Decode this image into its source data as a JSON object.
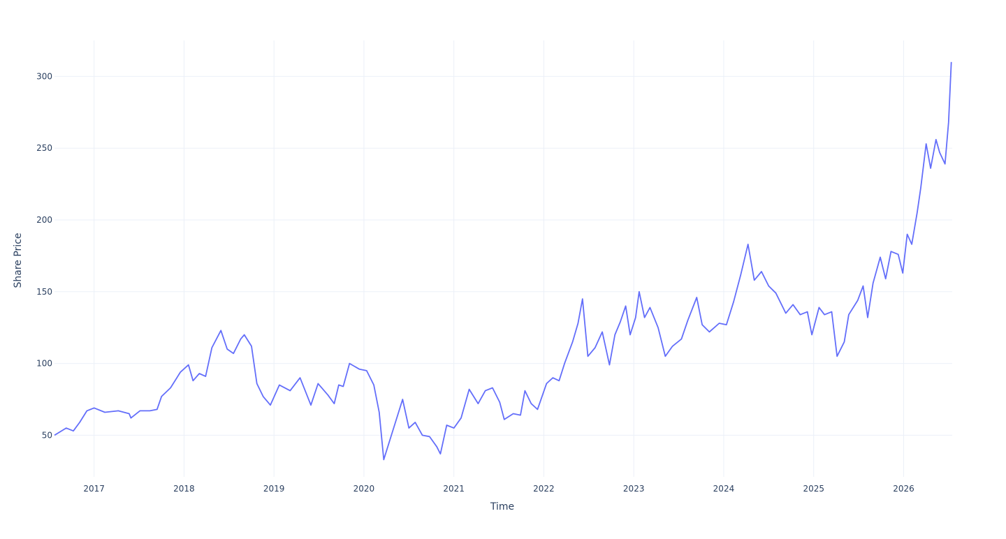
{
  "chart_data": {
    "type": "line",
    "x_label": "Time",
    "y_label": "Share Price",
    "xlim": [
      2016.56,
      2026.54
    ],
    "ylim": [
      21,
      325
    ],
    "xticks": [
      2017,
      2018,
      2019,
      2020,
      2021,
      2022,
      2023,
      2024,
      2025,
      2026
    ],
    "yticks": [
      50,
      100,
      150,
      200,
      250,
      300
    ],
    "grid": true,
    "series": [
      {
        "name": "Share Price",
        "color": "#636efa",
        "x": [
          2016.56,
          2016.69,
          2016.77,
          2016.84,
          2016.92,
          2017.0,
          2017.12,
          2017.27,
          2017.39,
          2017.41,
          2017.51,
          2017.62,
          2017.7,
          2017.75,
          2017.85,
          2017.96,
          2018.05,
          2018.1,
          2018.17,
          2018.24,
          2018.31,
          2018.41,
          2018.48,
          2018.55,
          2018.63,
          2018.67,
          2018.75,
          2018.81,
          2018.88,
          2018.96,
          2019.06,
          2019.18,
          2019.29,
          2019.41,
          2019.49,
          2019.6,
          2019.67,
          2019.72,
          2019.77,
          2019.84,
          2019.95,
          2020.03,
          2020.11,
          2020.17,
          2020.22,
          2020.3,
          2020.38,
          2020.43,
          2020.5,
          2020.57,
          2020.65,
          2020.73,
          2020.81,
          2020.85,
          2020.92,
          2021.0,
          2021.08,
          2021.17,
          2021.27,
          2021.35,
          2021.43,
          2021.51,
          2021.56,
          2021.66,
          2021.74,
          2021.79,
          2021.86,
          2021.93,
          2022.03,
          2022.1,
          2022.17,
          2022.23,
          2022.32,
          2022.38,
          2022.43,
          2022.49,
          2022.57,
          2022.65,
          2022.73,
          2022.79,
          2022.85,
          2022.91,
          2022.96,
          2023.02,
          2023.06,
          2023.12,
          2023.18,
          2023.27,
          2023.35,
          2023.43,
          2023.53,
          2023.6,
          2023.7,
          2023.76,
          2023.84,
          2023.95,
          2024.03,
          2024.11,
          2024.19,
          2024.27,
          2024.34,
          2024.42,
          2024.5,
          2024.58,
          2024.69,
          2024.77,
          2024.85,
          2024.93,
          2024.98,
          2025.06,
          2025.12,
          2025.2,
          2025.26,
          2025.34,
          2025.39,
          2025.49,
          2025.55,
          2025.6,
          2025.66,
          2025.74,
          2025.8,
          2025.86,
          2025.94,
          2025.99,
          2026.04,
          2026.09,
          2026.15,
          2026.19,
          2026.25,
          2026.3,
          2026.36,
          2026.4,
          2026.46,
          2026.5,
          2026.53
        ],
        "values": [
          50,
          55,
          53,
          59,
          67,
          69,
          66,
          67,
          65,
          62,
          67,
          67,
          68,
          77,
          83,
          94,
          99,
          88,
          93,
          91,
          111,
          123,
          110,
          107,
          117,
          120,
          112,
          86,
          77,
          71,
          85,
          81,
          90,
          71,
          86,
          78,
          72,
          85,
          84,
          100,
          96,
          95,
          85,
          66,
          33,
          49,
          65,
          75,
          55,
          59,
          50,
          49,
          42,
          37,
          57,
          55,
          62,
          82,
          72,
          81,
          83,
          73,
          61,
          65,
          64,
          81,
          72,
          68,
          86,
          90,
          88,
          100,
          115,
          128,
          145,
          105,
          111,
          122,
          99,
          120,
          129,
          140,
          120,
          132,
          150,
          132,
          139,
          125,
          105,
          112,
          117,
          130,
          146,
          127,
          122,
          128,
          127,
          143,
          162,
          183,
          158,
          164,
          154,
          149,
          135,
          141,
          134,
          136,
          120,
          139,
          134,
          136,
          105,
          115,
          134,
          144,
          154,
          132,
          156,
          174,
          159,
          178,
          176,
          163,
          190,
          183,
          205,
          222,
          253,
          236,
          256,
          247,
          239,
          268,
          310
        ]
      }
    ]
  }
}
